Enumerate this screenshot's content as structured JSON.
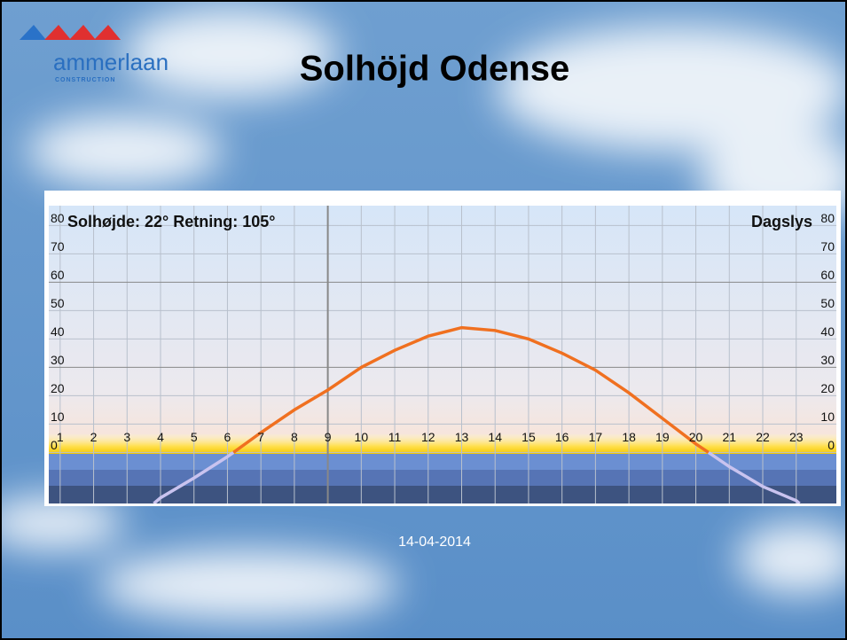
{
  "slide": {
    "logo_name": "ammerlaan",
    "logo_tagline": "CONSTRUCTION",
    "title": "Solhöjd Odense",
    "date": "14-04-2014"
  },
  "chart_data": {
    "type": "line",
    "annotation_left": "Solhøjde: 22° Retning: 105°",
    "annotation_right": "Dagslys",
    "xlim": [
      0.66,
      24.2
    ],
    "xticks": [
      1,
      2,
      3,
      4,
      5,
      6,
      7,
      8,
      9,
      10,
      11,
      12,
      13,
      14,
      15,
      16,
      17,
      18,
      19,
      20,
      21,
      22,
      23
    ],
    "ylim": [
      -18,
      87
    ],
    "yticks": [
      0,
      10,
      20,
      30,
      40,
      50,
      60,
      70,
      80
    ],
    "grid": true,
    "marker_x": 9,
    "series": [
      {
        "color": "#c9c3ef",
        "x": [
          3.8,
          4,
          5,
          6,
          6.18
        ],
        "values": [
          -18,
          -16,
          -9,
          -1.5,
          0
        ]
      },
      {
        "color": "#f07020",
        "x": [
          6.18,
          7,
          8,
          9,
          10,
          11,
          12,
          13,
          14,
          15,
          16,
          17,
          18,
          19,
          20,
          20.38
        ],
        "values": [
          0,
          7,
          15,
          22,
          30,
          36,
          41,
          44,
          43,
          40,
          35,
          29,
          21,
          12,
          3,
          0
        ]
      },
      {
        "color": "#c9c3ef",
        "x": [
          20.38,
          21,
          22,
          23,
          23.1
        ],
        "values": [
          0,
          -5,
          -12,
          -17,
          -18
        ]
      }
    ]
  }
}
